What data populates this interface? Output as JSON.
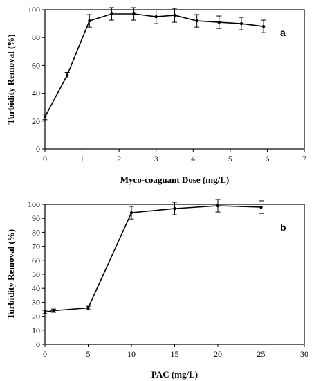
{
  "chart_data": [
    {
      "type": "line",
      "panel_label": "a",
      "xlabel": "Myco-coaguant Dose (mg/L)",
      "ylabel": "Turbidity Removal (%)",
      "xlim": [
        0,
        7
      ],
      "ylim": [
        0,
        100
      ],
      "xticks": [
        0,
        1,
        2,
        3,
        4,
        5,
        6,
        7
      ],
      "yticks": [
        0,
        20,
        40,
        60,
        80,
        100
      ],
      "x": [
        0,
        0.6,
        1.2,
        1.8,
        2.4,
        3.0,
        3.5,
        4.1,
        4.7,
        5.3,
        5.9
      ],
      "y": [
        23,
        53,
        92,
        97,
        97,
        95,
        96,
        92,
        91,
        90,
        88
      ],
      "error": [
        2,
        2,
        4.5,
        4.5,
        4.5,
        5,
        5,
        4.5,
        4.5,
        4.5,
        4.5
      ],
      "grid": false,
      "legend": "none"
    },
    {
      "type": "line",
      "panel_label": "b",
      "xlabel": "PAC (mg/L)",
      "ylabel": "Turbidity Removal (%)",
      "xlim": [
        0,
        30
      ],
      "ylim": [
        0,
        100
      ],
      "xticks": [
        0,
        5,
        10,
        15,
        20,
        25,
        30
      ],
      "yticks": [
        0,
        10,
        20,
        30,
        40,
        50,
        60,
        70,
        80,
        90,
        100
      ],
      "x": [
        0,
        1,
        5,
        10,
        15,
        20,
        25
      ],
      "y": [
        23,
        24,
        26,
        94,
        97,
        99,
        98
      ],
      "error": [
        1.2,
        1.2,
        1.2,
        4.5,
        4.5,
        4.5,
        4.5
      ],
      "grid": false,
      "legend": "none"
    }
  ]
}
